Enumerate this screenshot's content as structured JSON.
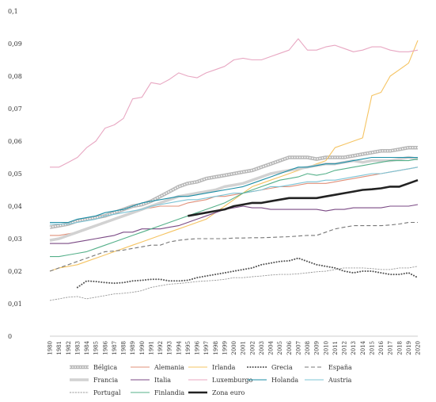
{
  "chart_data": {
    "type": "line",
    "x": [
      1980,
      1981,
      1982,
      1983,
      1984,
      1985,
      1986,
      1987,
      1988,
      1989,
      1990,
      1991,
      1992,
      1993,
      1994,
      1995,
      1996,
      1997,
      1998,
      1999,
      2000,
      2001,
      2002,
      2003,
      2004,
      2005,
      2006,
      2007,
      2008,
      2009,
      2010,
      2011,
      2012,
      2013,
      2014,
      2015,
      2016,
      2017,
      2018,
      2019,
      2020
    ],
    "ylim": [
      0,
      0.1
    ],
    "yticks": [
      0,
      0.01,
      0.02,
      0.03,
      0.04,
      0.05,
      0.06,
      0.07,
      0.08,
      0.09,
      0.1
    ],
    "ytick_labels": [
      "0",
      "0,01",
      "0,02",
      "0,03",
      "0,04",
      "0,05",
      "0,06",
      "0,07",
      "0,08",
      "0,09",
      "0,1"
    ],
    "legend_position": "bottom",
    "series": [
      {
        "name": "Bélgica",
        "color": "#c8c8c8",
        "style": "band",
        "values": [
          0.0335,
          0.034,
          0.0345,
          0.0355,
          0.036,
          0.0365,
          0.037,
          0.038,
          0.039,
          0.04,
          0.0405,
          0.0415,
          0.043,
          0.0445,
          0.046,
          0.047,
          0.0475,
          0.0485,
          0.049,
          0.0495,
          0.05,
          0.0505,
          0.051,
          0.052,
          0.053,
          0.054,
          0.055,
          0.055,
          0.055,
          0.0545,
          0.055,
          0.055,
          0.055,
          0.0555,
          0.056,
          0.0565,
          0.057,
          0.057,
          0.0575,
          0.058,
          0.058
        ]
      },
      {
        "name": "Alemania",
        "color": "#e0907a",
        "style": "solid",
        "values": [
          0.031,
          0.031,
          0.0315,
          0.032,
          0.033,
          0.034,
          0.035,
          0.036,
          0.037,
          0.038,
          0.039,
          0.0395,
          0.04,
          0.04,
          0.04,
          0.041,
          0.0415,
          0.042,
          0.043,
          0.043,
          0.0435,
          0.044,
          0.0445,
          0.045,
          0.0455,
          0.046,
          0.046,
          0.0465,
          0.047,
          0.047,
          0.047,
          0.0475,
          0.048,
          0.0485,
          0.049,
          0.0495,
          0.05,
          0.0505,
          0.051,
          0.0515,
          0.052
        ]
      },
      {
        "name": "Irlanda",
        "color": "#f5c463",
        "style": "solid",
        "values": [
          0.02,
          0.021,
          0.0215,
          0.022,
          0.023,
          0.024,
          0.025,
          0.026,
          0.027,
          0.028,
          0.029,
          0.03,
          0.031,
          0.032,
          0.033,
          0.034,
          0.035,
          0.036,
          0.038,
          0.04,
          0.042,
          0.044,
          0.046,
          0.047,
          0.048,
          0.049,
          0.05,
          0.051,
          0.052,
          0.053,
          0.054,
          0.058,
          0.059,
          0.06,
          0.061,
          0.074,
          0.075,
          0.08,
          0.082,
          0.084,
          0.091
        ]
      },
      {
        "name": "Grecia",
        "color": "#555555",
        "style": "dotted",
        "values": [
          null,
          null,
          null,
          0.015,
          0.017,
          0.0168,
          0.0165,
          0.0163,
          0.0165,
          0.017,
          0.0172,
          0.0175,
          0.0175,
          0.017,
          0.017,
          0.0172,
          0.018,
          0.0185,
          0.019,
          0.0195,
          0.02,
          0.0205,
          0.021,
          0.022,
          0.0225,
          0.023,
          0.0232,
          0.024,
          0.023,
          0.022,
          0.0215,
          0.021,
          0.02,
          0.0195,
          0.02,
          0.02,
          0.0195,
          0.019,
          0.019,
          0.0195,
          0.018
        ]
      },
      {
        "name": "España",
        "color": "#777777",
        "style": "dashed",
        "values": [
          0.02,
          0.021,
          0.022,
          0.023,
          0.024,
          0.025,
          0.026,
          0.0262,
          0.0265,
          0.027,
          0.0275,
          0.028,
          0.028,
          0.029,
          0.0295,
          0.0298,
          0.03,
          0.03,
          0.03,
          0.03,
          0.0302,
          0.0302,
          0.0303,
          0.0303,
          0.0304,
          0.0305,
          0.0306,
          0.0308,
          0.031,
          0.031,
          0.032,
          0.033,
          0.0335,
          0.034,
          0.034,
          0.034,
          0.034,
          0.0342,
          0.0345,
          0.035,
          0.035
        ]
      },
      {
        "name": "Francia",
        "color": "#d8d8d8",
        "style": "band-light",
        "values": [
          0.0295,
          0.03,
          0.031,
          0.032,
          0.033,
          0.034,
          0.035,
          0.036,
          0.037,
          0.038,
          0.039,
          0.04,
          0.041,
          0.042,
          0.043,
          0.0435,
          0.044,
          0.0445,
          0.045,
          0.046,
          0.0465,
          0.047,
          0.048,
          0.049,
          0.05,
          0.0505,
          0.051,
          0.0515,
          0.052,
          0.0525,
          0.053,
          0.053,
          0.0535,
          0.054,
          0.0535,
          0.054,
          0.054,
          0.054,
          0.0545,
          0.055,
          0.0545
        ]
      },
      {
        "name": "Italia",
        "color": "#7b4a85",
        "style": "solid",
        "values": [
          0.0285,
          0.0285,
          0.0285,
          0.029,
          0.0295,
          0.03,
          0.0305,
          0.031,
          0.032,
          0.032,
          0.033,
          0.033,
          0.033,
          0.0335,
          0.034,
          0.035,
          0.036,
          0.037,
          0.038,
          0.039,
          0.0395,
          0.04,
          0.0395,
          0.0395,
          0.039,
          0.039,
          0.039,
          0.039,
          0.039,
          0.039,
          0.0385,
          0.039,
          0.039,
          0.0395,
          0.0395,
          0.0395,
          0.0395,
          0.04,
          0.04,
          0.04,
          0.0405
        ]
      },
      {
        "name": "Luxemburgo",
        "color": "#e8a7c2",
        "style": "solid",
        "values": [
          0.052,
          0.052,
          0.0535,
          0.055,
          0.058,
          0.06,
          0.064,
          0.065,
          0.067,
          0.073,
          0.0735,
          0.078,
          0.0775,
          0.079,
          0.081,
          0.08,
          0.0795,
          0.081,
          0.082,
          0.083,
          0.085,
          0.0855,
          0.085,
          0.085,
          0.086,
          0.087,
          0.088,
          0.0915,
          0.088,
          0.088,
          0.089,
          0.0895,
          0.0885,
          0.0875,
          0.088,
          0.089,
          0.089,
          0.088,
          0.0875,
          0.0875,
          0.088
        ]
      },
      {
        "name": "Holanda",
        "color": "#1b8ea6",
        "style": "solid",
        "values": [
          0.035,
          0.035,
          0.035,
          0.036,
          0.0365,
          0.037,
          0.038,
          0.0385,
          0.039,
          0.04,
          0.041,
          0.0415,
          0.042,
          0.0425,
          0.043,
          0.043,
          0.0435,
          0.044,
          0.0445,
          0.045,
          0.0455,
          0.046,
          0.047,
          0.048,
          0.049,
          0.05,
          0.051,
          0.052,
          0.052,
          0.0525,
          0.053,
          0.053,
          0.0535,
          0.054,
          0.0545,
          0.055,
          0.055,
          0.055,
          0.055,
          0.055,
          0.055
        ]
      },
      {
        "name": "Austria",
        "color": "#7cc4d6",
        "style": "solid",
        "values": [
          0.0345,
          0.0345,
          0.0345,
          0.035,
          0.0355,
          0.036,
          0.037,
          0.0375,
          0.038,
          0.0385,
          0.039,
          0.04,
          0.0405,
          0.041,
          0.0415,
          0.042,
          0.042,
          0.0425,
          0.043,
          0.0435,
          0.044,
          0.044,
          0.0445,
          0.045,
          0.046,
          0.046,
          0.0465,
          0.047,
          0.0475,
          0.0475,
          0.048,
          0.048,
          0.0485,
          0.049,
          0.0495,
          0.05,
          0.05,
          0.0505,
          0.051,
          0.0515,
          0.052
        ]
      },
      {
        "name": "Portugal",
        "color": "#9a9a9a",
        "style": "circles",
        "values": [
          0.011,
          0.0115,
          0.012,
          0.0122,
          0.0115,
          0.012,
          0.0125,
          0.013,
          0.0132,
          0.0135,
          0.014,
          0.015,
          0.0155,
          0.016,
          0.0162,
          0.0165,
          0.0168,
          0.017,
          0.0172,
          0.0175,
          0.018,
          0.018,
          0.0183,
          0.0185,
          0.0188,
          0.019,
          0.019,
          0.0192,
          0.0195,
          0.0198,
          0.02,
          0.0205,
          0.021,
          0.021,
          0.021,
          0.0208,
          0.0205,
          0.0205,
          0.021,
          0.021,
          0.0215
        ]
      },
      {
        "name": "Finlandia",
        "color": "#55b08a",
        "style": "solid",
        "values": [
          0.0245,
          0.0245,
          0.025,
          0.0255,
          0.026,
          0.027,
          0.028,
          0.029,
          0.03,
          0.031,
          0.032,
          0.033,
          0.034,
          0.035,
          0.036,
          0.037,
          0.038,
          0.039,
          0.04,
          0.041,
          0.0425,
          0.044,
          0.045,
          0.046,
          0.047,
          0.048,
          0.0485,
          0.049,
          0.05,
          0.0495,
          0.05,
          0.051,
          0.0515,
          0.052,
          0.0525,
          0.053,
          0.0535,
          0.054,
          0.054,
          0.054,
          0.0545
        ]
      },
      {
        "name": "Zona euro",
        "color": "#222222",
        "style": "bold",
        "values": [
          null,
          null,
          null,
          null,
          null,
          null,
          null,
          null,
          null,
          null,
          null,
          null,
          null,
          null,
          null,
          0.037,
          0.0375,
          0.038,
          0.0385,
          0.039,
          0.04,
          0.0405,
          0.041,
          0.041,
          0.0415,
          0.042,
          0.0425,
          0.0425,
          0.0425,
          0.0425,
          0.043,
          0.0435,
          0.044,
          0.0445,
          0.045,
          0.0452,
          0.0455,
          0.046,
          0.046,
          0.047,
          0.048
        ]
      }
    ]
  }
}
